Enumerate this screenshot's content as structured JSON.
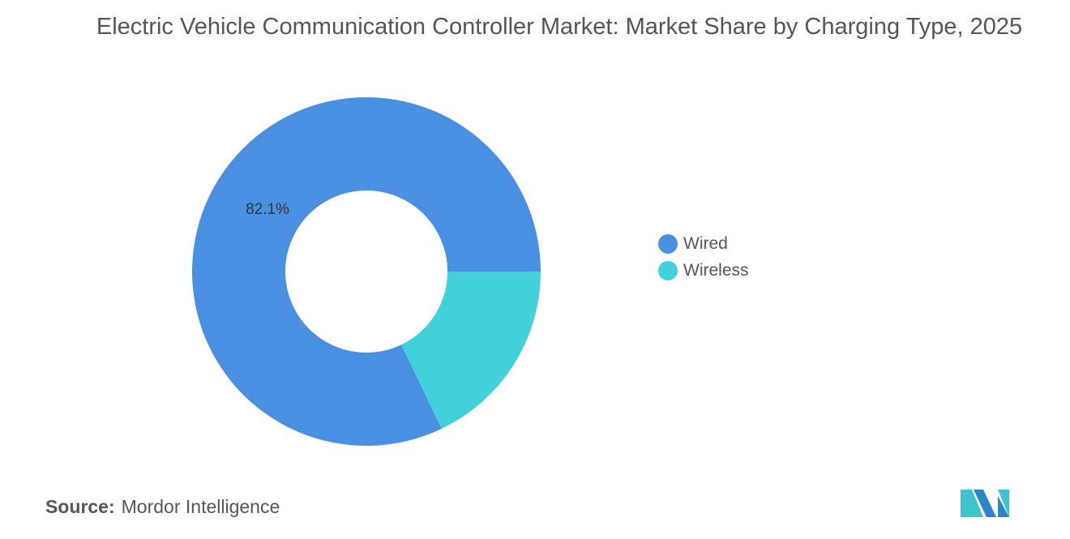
{
  "chart_data": {
    "type": "pie",
    "title": "Electric Vehicle Communication Controller Market: Market Share by Charging Type, 2025",
    "donut": true,
    "categories": [
      "Wired",
      "Wireless"
    ],
    "values": [
      82.1,
      17.9
    ],
    "data_labels": [
      "82.1%",
      ""
    ],
    "colors": [
      "#4a90e2",
      "#40d1da"
    ],
    "legend_placement": "right"
  },
  "source": {
    "label": "Source:",
    "value": "Mordor Intelligence"
  },
  "logo": {
    "text": "Mordor Intelligence"
  }
}
